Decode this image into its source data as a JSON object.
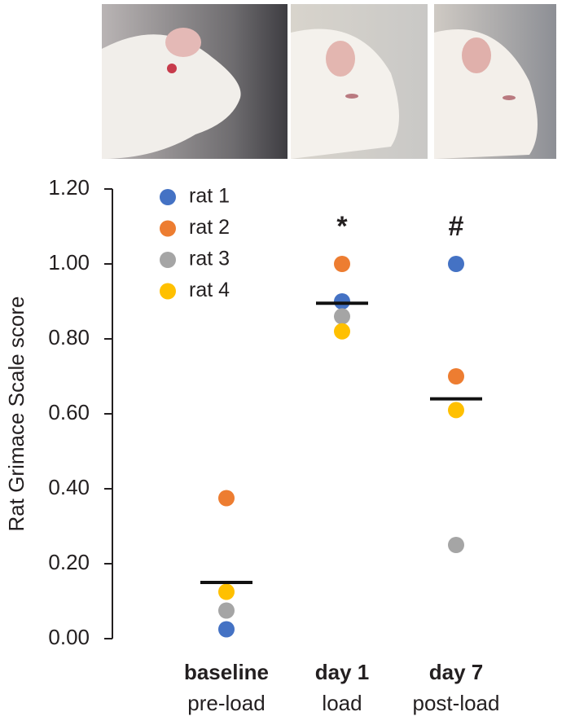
{
  "chart_data": {
    "type": "dot",
    "y_label": "Rat Grimace Scale score",
    "categories": [
      "baseline",
      "day 1",
      "day 7"
    ],
    "category_sublabels": [
      "pre-load",
      "load",
      "post-load"
    ],
    "series": [
      {
        "name": "rat 1",
        "color": "#4472c4",
        "values": [
          0.025,
          0.9,
          1.0
        ]
      },
      {
        "name": "rat 2",
        "color": "#ed7d31",
        "values": [
          0.375,
          1.0,
          0.7
        ]
      },
      {
        "name": "rat 3",
        "color": "#a5a5a5",
        "values": [
          0.075,
          0.86,
          0.25
        ]
      },
      {
        "name": "rat 4",
        "color": "#ffc000",
        "values": [
          0.125,
          0.82,
          0.61
        ]
      }
    ],
    "means": [
      0.15,
      0.895,
      0.64
    ],
    "mean_color": "#111111",
    "annotations": [
      {
        "category": "day 1",
        "text": "*"
      },
      {
        "category": "day 7",
        "text": "#"
      }
    ],
    "ylim": [
      0,
      1.2
    ],
    "yticks": [
      {
        "value": 0,
        "label": "0.00"
      },
      {
        "value": 0.2,
        "label": "0.20"
      },
      {
        "value": 0.4,
        "label": "0.40"
      },
      {
        "value": 0.6,
        "label": "0.60"
      },
      {
        "value": 0.8,
        "label": "0.80"
      },
      {
        "value": 1.0,
        "label": "1.00"
      },
      {
        "value": 1.2,
        "label": "1.20"
      }
    ],
    "legend": "upper-left"
  }
}
